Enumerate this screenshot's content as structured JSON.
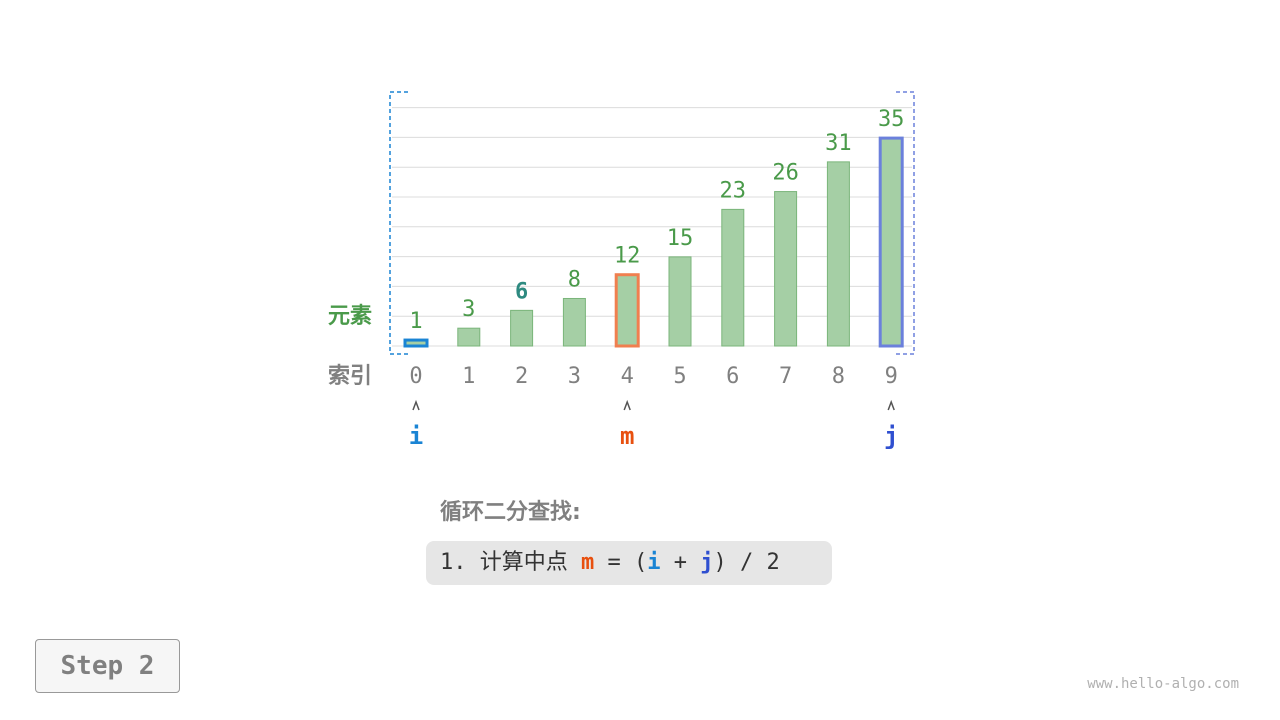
{
  "chart_data": {
    "type": "bar",
    "categories": [
      "0",
      "1",
      "2",
      "3",
      "4",
      "5",
      "6",
      "7",
      "8",
      "9"
    ],
    "values": [
      1,
      3,
      6,
      8,
      12,
      15,
      23,
      26,
      31,
      35
    ],
    "ylabel": "元素",
    "xlabel": "索引",
    "grid": true,
    "highlights": {
      "i": 0,
      "m": 4,
      "j": 9,
      "target_value": 6
    },
    "colors": {
      "bar": "#a5cfa5",
      "bar_border": "#7ab57a",
      "value_label": "#4a9a4a",
      "target_label": "#2e8a80",
      "i": "#1a84d4",
      "m": "#e8500f",
      "m_border": "#f07f4f",
      "j": "#2f4fd0",
      "j_border": "#6b80dc",
      "index_label": "#808080"
    }
  },
  "pointers": {
    "i": "i",
    "m": "m",
    "j": "j"
  },
  "title": "循环二分查找:",
  "step_code": {
    "prefix": "1. 计算中点 ",
    "m": "m",
    "eq": " = (",
    "i": "i",
    "plus": " + ",
    "j": "j",
    "suffix": ") / 2"
  },
  "step_button": "Step 2",
  "watermark": "www.hello-algo.com"
}
